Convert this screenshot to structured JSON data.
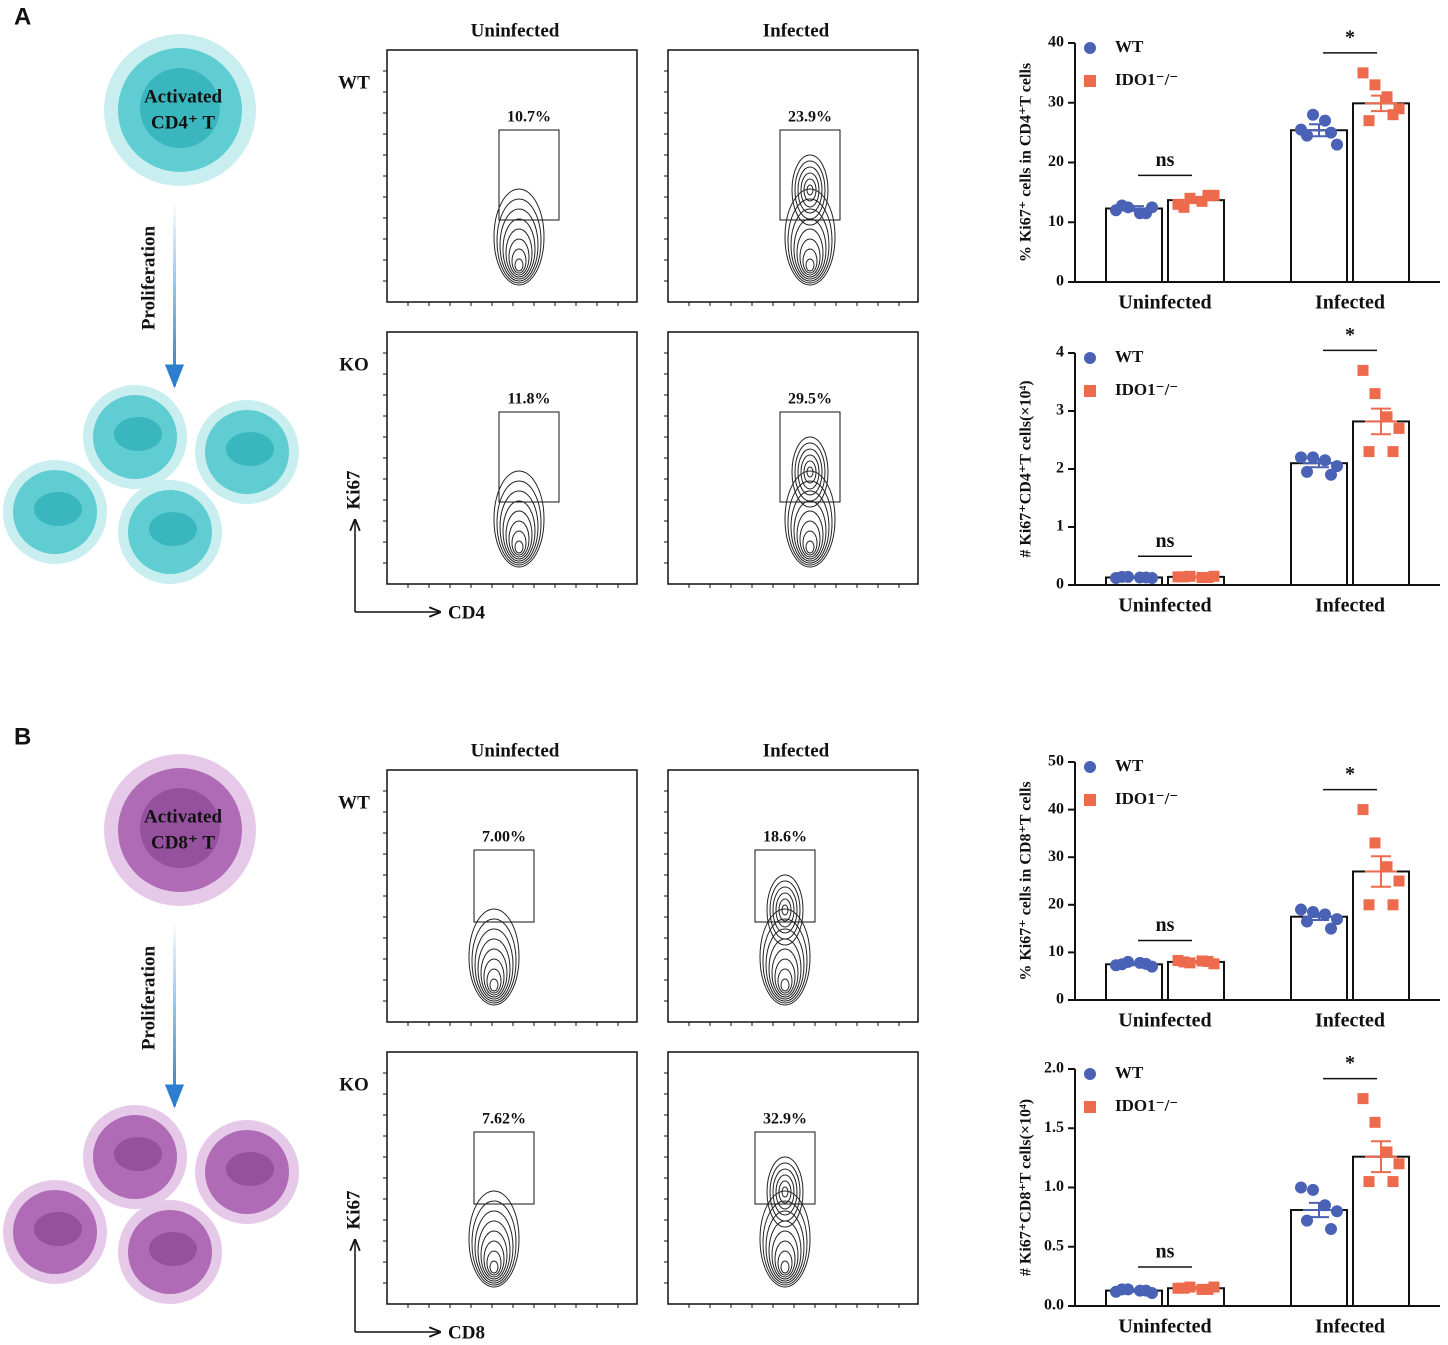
{
  "panels": [
    {
      "label": "A",
      "cell_top": "Activated",
      "cell_bottom": "CD4⁺ T",
      "arrow_label": "Proliferation",
      "columns": [
        "Uninfected",
        "Infected"
      ],
      "rows": [
        "WT",
        "KO"
      ],
      "gates": [
        [
          "10.7%",
          "23.9%"
        ],
        [
          "11.8%",
          "29.5%"
        ]
      ],
      "y_axis": "Ki67",
      "x_axis": "CD4"
    },
    {
      "label": "B",
      "cell_top": "Activated",
      "cell_bottom": "CD8⁺ T",
      "arrow_label": "Proliferation",
      "columns": [
        "Uninfected",
        "Infected"
      ],
      "rows": [
        "WT",
        "KO"
      ],
      "gates": [
        [
          "7.00%",
          "18.6%"
        ],
        [
          "7.62%",
          "32.9%"
        ]
      ],
      "y_axis": "Ki67",
      "x_axis": "CD8"
    }
  ],
  "chart_data": [
    {
      "type": "bar",
      "ylabel": "% Ki67⁺ cells in CD4⁺T cells",
      "categories": [
        "Uninfected",
        "Infected"
      ],
      "ylim": [
        0,
        40
      ],
      "yticks": [
        0,
        10,
        20,
        30,
        40
      ],
      "significance": [
        "ns",
        "*"
      ],
      "series": [
        {
          "name": "WT",
          "color": "#4a62b5",
          "values": [
            12.3,
            25.4
          ],
          "errors": [
            0.4,
            1.0
          ],
          "points": [
            [
              12.0,
              12.5,
              11.5,
              12.5,
              12.8,
              11.5
            ],
            [
              25.5,
              28.0,
              27.0,
              23.0,
              24.5,
              25.0
            ]
          ]
        },
        {
          "name": "IDO1⁻/⁻",
          "color": "#ee6a4d",
          "values": [
            13.7,
            29.9
          ],
          "errors": [
            0.5,
            1.3
          ],
          "points": [
            [
              13.0,
              14.0,
              13.5,
              14.5,
              12.5,
              14.5
            ],
            [
              35.0,
              33.0,
              31.0,
              29.0,
              27.0,
              28.0
            ]
          ]
        }
      ]
    },
    {
      "type": "bar",
      "ylabel": "# Ki67⁺CD4⁺T cells(×10⁴)",
      "categories": [
        "Uninfected",
        "Infected"
      ],
      "ylim": [
        0,
        4
      ],
      "yticks": [
        0,
        1,
        2,
        3,
        4
      ],
      "significance": [
        "ns",
        "*"
      ],
      "series": [
        {
          "name": "WT",
          "color": "#4a62b5",
          "values": [
            0.13,
            2.1
          ],
          "errors": [
            0.01,
            0.07
          ],
          "points": [
            [
              0.12,
              0.14,
              0.13,
              0.12,
              0.14,
              0.13
            ],
            [
              2.2,
              2.2,
              2.15,
              2.05,
              1.95,
              1.9
            ]
          ]
        },
        {
          "name": "IDO1⁻/⁻",
          "color": "#ee6a4d",
          "values": [
            0.14,
            2.82
          ],
          "errors": [
            0.01,
            0.22
          ],
          "points": [
            [
              0.14,
              0.15,
              0.13,
              0.15,
              0.14,
              0.13
            ],
            [
              3.7,
              3.3,
              2.9,
              2.7,
              2.3,
              2.3
            ]
          ]
        }
      ]
    },
    {
      "type": "bar",
      "ylabel": "% Ki67⁺ cells in CD8⁺T cells",
      "categories": [
        "Uninfected",
        "Infected"
      ],
      "ylim": [
        0,
        50
      ],
      "yticks": [
        0,
        10,
        20,
        30,
        40,
        50
      ],
      "significance": [
        "ns",
        "*"
      ],
      "series": [
        {
          "name": "WT",
          "color": "#4a62b5",
          "values": [
            7.5,
            17.5
          ],
          "errors": [
            0.2,
            0.7
          ],
          "points": [
            [
              7.3,
              8.0,
              7.8,
              7.0,
              7.5,
              7.6
            ],
            [
              19.0,
              18.5,
              18.0,
              17.0,
              16.5,
              15.0
            ]
          ]
        },
        {
          "name": "IDO1⁻/⁻",
          "color": "#ee6a4d",
          "values": [
            8.0,
            27.0
          ],
          "errors": [
            0.2,
            3.2
          ],
          "points": [
            [
              8.3,
              7.8,
              8.2,
              7.6,
              8.0,
              8.1
            ],
            [
              40.0,
              33.0,
              28.0,
              25.0,
              20.0,
              20.0
            ]
          ]
        }
      ]
    },
    {
      "type": "bar",
      "ylabel": "# Ki67⁺CD8⁺T cells(×10⁴)",
      "categories": [
        "Uninfected",
        "Infected"
      ],
      "ylim": [
        0,
        2
      ],
      "yticks": [
        {
          "value": 0,
          "label": "0.0"
        },
        {
          "value": 0.5,
          "label": "0.5"
        },
        {
          "value": 1,
          "label": "1.0"
        },
        {
          "value": 1.5,
          "label": "1.5"
        },
        {
          "value": 2,
          "label": "2.0"
        }
      ],
      "significance": [
        "ns",
        "*"
      ],
      "series": [
        {
          "name": "WT",
          "color": "#4a62b5",
          "values": [
            0.13,
            0.81
          ],
          "errors": [
            0.01,
            0.06
          ],
          "points": [
            [
              0.12,
              0.14,
              0.13,
              0.11,
              0.14,
              0.13
            ],
            [
              1.0,
              0.98,
              0.85,
              0.8,
              0.72,
              0.65
            ]
          ]
        },
        {
          "name": "IDO1⁻/⁻",
          "color": "#ee6a4d",
          "values": [
            0.15,
            1.26
          ],
          "errors": [
            0.01,
            0.13
          ],
          "points": [
            [
              0.15,
              0.16,
              0.14,
              0.16,
              0.15,
              0.14
            ],
            [
              1.75,
              1.55,
              1.3,
              1.2,
              1.05,
              1.05
            ]
          ]
        }
      ]
    }
  ]
}
